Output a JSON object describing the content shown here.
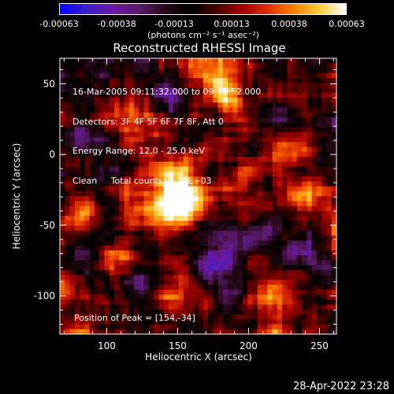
{
  "colorbar": {
    "ticks": [
      "-0.00063",
      "-0.00038",
      "-0.00013",
      "0.00013",
      "0.00038",
      "0.00063"
    ],
    "units": "(photons cm⁻² s⁻¹ asec⁻²)",
    "stops": [
      "#0000ff",
      "#3d1fc8",
      "#6a1aa8",
      "#5a1a6e",
      "#2a0a1a",
      "#000000",
      "#4a0000",
      "#a00000",
      "#e03000",
      "#ff8000",
      "#ffd040",
      "#ffffff"
    ]
  },
  "chart_data": {
    "type": "heatmap",
    "title": "Reconstructed RHESSI Image",
    "xlabel": "Heliocentric X (arcsec)",
    "ylabel": "Heliocentric Y (arcsec)",
    "xlim": [
      67,
      262
    ],
    "ylim": [
      -127,
      68
    ],
    "xticks": [
      100,
      150,
      200,
      250
    ],
    "yticks": [
      -100,
      -50,
      0,
      50
    ],
    "value_range": [
      -0.00063,
      0.00063
    ],
    "peak": [
      154,
      -34
    ],
    "sources": [
      {
        "x": 154,
        "y": -32,
        "amp": 1.0,
        "sigma": 14
      },
      {
        "x": 140,
        "y": -38,
        "amp": 0.55,
        "sigma": 12
      },
      {
        "x": 130,
        "y": -10,
        "amp": 0.45,
        "sigma": 16
      },
      {
        "x": 110,
        "y": 30,
        "amp": 0.45,
        "sigma": 14
      },
      {
        "x": 175,
        "y": 50,
        "amp": 0.5,
        "sigma": 12
      },
      {
        "x": 215,
        "y": 55,
        "amp": 0.4,
        "sigma": 10
      },
      {
        "x": 240,
        "y": -30,
        "amp": 0.5,
        "sigma": 12
      },
      {
        "x": 230,
        "y": 10,
        "amp": 0.35,
        "sigma": 10
      },
      {
        "x": 220,
        "y": -95,
        "amp": 0.55,
        "sigma": 11
      },
      {
        "x": 85,
        "y": -40,
        "amp": 0.55,
        "sigma": 9
      },
      {
        "x": 100,
        "y": -75,
        "amp": 0.4,
        "sigma": 10
      },
      {
        "x": 150,
        "y": -100,
        "amp": 0.45,
        "sigma": 12
      },
      {
        "x": 200,
        "y": -20,
        "amp": 0.35,
        "sigma": 12
      },
      {
        "x": 180,
        "y": 20,
        "amp": 0.3,
        "sigma": 14
      },
      {
        "x": 255,
        "y": 40,
        "amp": 0.3,
        "sigma": 10
      }
    ],
    "negatives": [
      {
        "x": 100,
        "y": 0,
        "amp": -0.45,
        "sigma": 12
      },
      {
        "x": 195,
        "y": -60,
        "amp": -0.5,
        "sigma": 14
      },
      {
        "x": 245,
        "y": -70,
        "amp": -0.45,
        "sigma": 12
      },
      {
        "x": 160,
        "y": 40,
        "amp": -0.4,
        "sigma": 11
      },
      {
        "x": 175,
        "y": -80,
        "amp": -0.4,
        "sigma": 12
      },
      {
        "x": 120,
        "y": -90,
        "amp": -0.35,
        "sigma": 10
      },
      {
        "x": 210,
        "y": 30,
        "amp": -0.35,
        "sigma": 10
      },
      {
        "x": 250,
        "y": 0,
        "amp": -0.3,
        "sigma": 9
      },
      {
        "x": 80,
        "y": 10,
        "amp": -0.3,
        "sigma": 8
      }
    ]
  },
  "annotations": {
    "time": "16-Mar-2005 09:11:32.000 to 09:15:52.000",
    "detectors": "Detectors: 3F 4F 5F 6F 7F 8F, Att 0",
    "energy": "Energy Range: 12.0 - 25.0 keV",
    "clean": "Clean     Total counts: 4.29E+03",
    "peak": "Position of Peak = [154,-34]"
  },
  "datestamp": "28-Apr-2022 23:28"
}
